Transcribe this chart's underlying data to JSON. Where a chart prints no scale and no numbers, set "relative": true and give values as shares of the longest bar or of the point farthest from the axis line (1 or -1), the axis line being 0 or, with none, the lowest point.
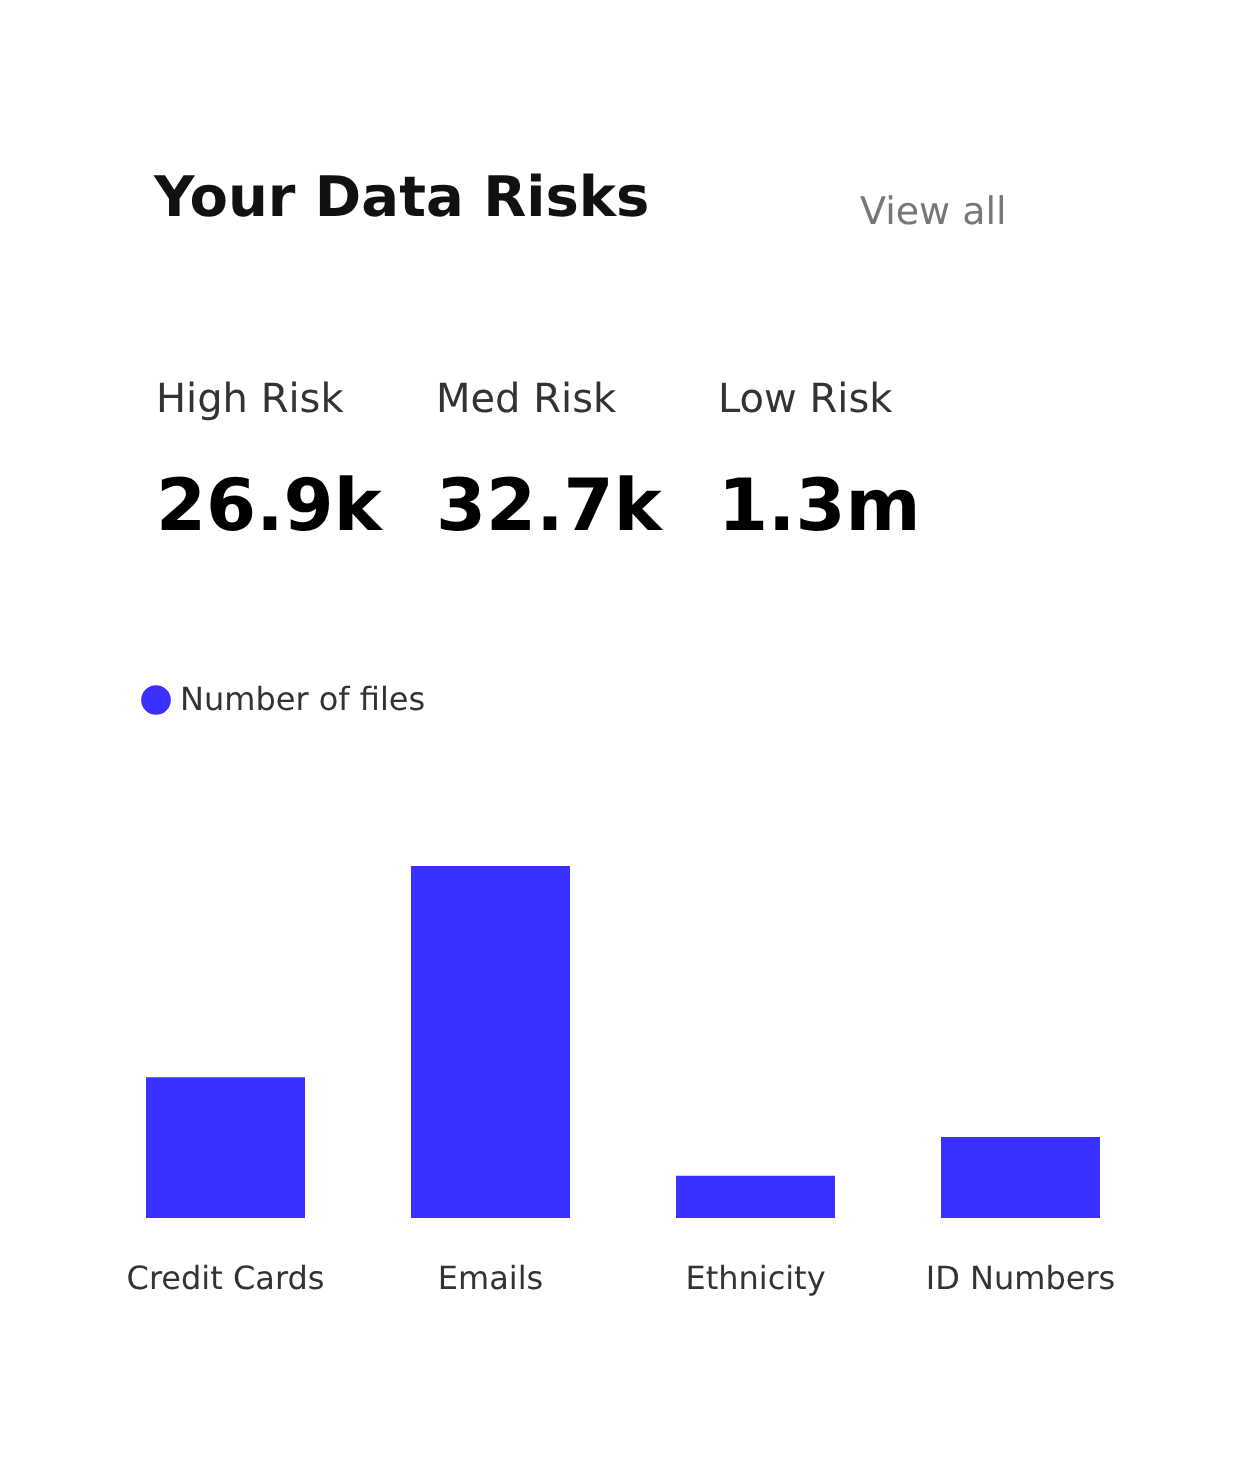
{
  "chart_data": {
    "type": "bar",
    "title": "Your Data Risks",
    "annotations": [
      "View all",
      "High Risk",
      "Med Risk",
      "Low Risk",
      "26.9k",
      "32.7k",
      "1.3m"
    ],
    "categories": [
      "Credit Cards",
      "Emails",
      "Ethnicity",
      "ID Numbers"
    ],
    "series": [
      {
        "name": "Number of files",
        "color": "#3a30ff",
        "values": [
          0.4,
          1,
          0.12,
          0.23
        ]
      }
    ],
    "relative": true,
    "grid": false,
    "legend": "top left"
  }
}
